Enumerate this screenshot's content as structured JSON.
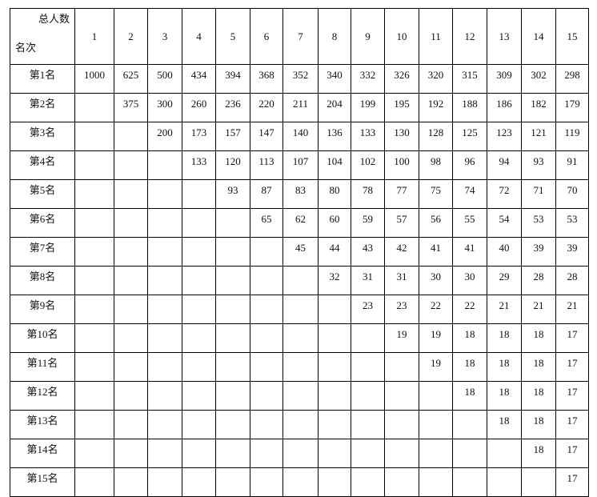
{
  "table": {
    "corner_top": "总人数",
    "corner_bottom": "名次",
    "columns": [
      "1",
      "2",
      "3",
      "4",
      "5",
      "6",
      "7",
      "8",
      "9",
      "10",
      "11",
      "12",
      "13",
      "14",
      "15"
    ],
    "rows": [
      {
        "label": "第1名",
        "values": [
          "1000",
          "625",
          "500",
          "434",
          "394",
          "368",
          "352",
          "340",
          "332",
          "326",
          "320",
          "315",
          "309",
          "302",
          "298"
        ]
      },
      {
        "label": "第2名",
        "values": [
          "",
          "375",
          "300",
          "260",
          "236",
          "220",
          "211",
          "204",
          "199",
          "195",
          "192",
          "188",
          "186",
          "182",
          "179"
        ]
      },
      {
        "label": "第3名",
        "values": [
          "",
          "",
          "200",
          "173",
          "157",
          "147",
          "140",
          "136",
          "133",
          "130",
          "128",
          "125",
          "123",
          "121",
          "119"
        ]
      },
      {
        "label": "第4名",
        "values": [
          "",
          "",
          "",
          "133",
          "120",
          "113",
          "107",
          "104",
          "102",
          "100",
          "98",
          "96",
          "94",
          "93",
          "91"
        ]
      },
      {
        "label": "第5名",
        "values": [
          "",
          "",
          "",
          "",
          "93",
          "87",
          "83",
          "80",
          "78",
          "77",
          "75",
          "74",
          "72",
          "71",
          "70"
        ]
      },
      {
        "label": "第6名",
        "values": [
          "",
          "",
          "",
          "",
          "",
          "65",
          "62",
          "60",
          "59",
          "57",
          "56",
          "55",
          "54",
          "53",
          "53"
        ]
      },
      {
        "label": "第7名",
        "values": [
          "",
          "",
          "",
          "",
          "",
          "",
          "45",
          "44",
          "43",
          "42",
          "41",
          "41",
          "40",
          "39",
          "39"
        ]
      },
      {
        "label": "第8名",
        "values": [
          "",
          "",
          "",
          "",
          "",
          "",
          "",
          "32",
          "31",
          "31",
          "30",
          "30",
          "29",
          "28",
          "28"
        ]
      },
      {
        "label": "第9名",
        "values": [
          "",
          "",
          "",
          "",
          "",
          "",
          "",
          "",
          "23",
          "23",
          "22",
          "22",
          "21",
          "21",
          "21"
        ]
      },
      {
        "label": "第10名",
        "values": [
          "",
          "",
          "",
          "",
          "",
          "",
          "",
          "",
          "",
          "19",
          "19",
          "18",
          "18",
          "18",
          "17"
        ]
      },
      {
        "label": "第11名",
        "values": [
          "",
          "",
          "",
          "",
          "",
          "",
          "",
          "",
          "",
          "",
          "19",
          "18",
          "18",
          "18",
          "17"
        ]
      },
      {
        "label": "第12名",
        "values": [
          "",
          "",
          "",
          "",
          "",
          "",
          "",
          "",
          "",
          "",
          "",
          "18",
          "18",
          "18",
          "17"
        ]
      },
      {
        "label": "第13名",
        "values": [
          "",
          "",
          "",
          "",
          "",
          "",
          "",
          "",
          "",
          "",
          "",
          "",
          "18",
          "18",
          "17"
        ]
      },
      {
        "label": "第14名",
        "values": [
          "",
          "",
          "",
          "",
          "",
          "",
          "",
          "",
          "",
          "",
          "",
          "",
          "",
          "18",
          "17"
        ]
      },
      {
        "label": "第15名",
        "values": [
          "",
          "",
          "",
          "",
          "",
          "",
          "",
          "",
          "",
          "",
          "",
          "",
          "",
          "",
          "17"
        ]
      }
    ]
  }
}
